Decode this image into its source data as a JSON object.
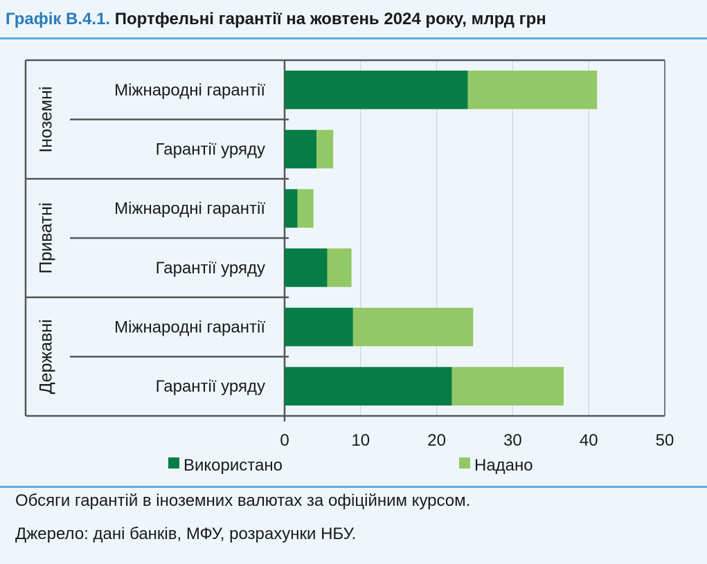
{
  "title": {
    "number": "Графік В.4.1.",
    "text": "Портфельні гарантії на жовтень 2024 року, млрд грн",
    "number_color": "#2b7bbd"
  },
  "note": "Обсяги гарантій в іноземних валютах за офіційним курсом.",
  "source": "Джерело: дані банків, МФУ, розрахунки НБУ.",
  "chart_data": {
    "type": "bar",
    "orientation": "horizontal",
    "stacked": true,
    "groups": [
      {
        "name": "Іноземні",
        "categories": [
          "Міжнародні гарантії",
          "Гарантії уряду"
        ]
      },
      {
        "name": "Приватні",
        "categories": [
          "Міжнародні гарантії",
          "Гарантії уряду"
        ]
      },
      {
        "name": "Державні",
        "categories": [
          "Міжнародні гарантії",
          "Гарантії уряду"
        ]
      }
    ],
    "series": [
      {
        "name": "Використано",
        "color": "#067d45",
        "values": [
          24.1,
          4.2,
          1.7,
          5.6,
          9.0,
          22.0
        ]
      },
      {
        "name": "Надано",
        "color": "#93c866",
        "values": [
          17.0,
          2.2,
          2.1,
          3.2,
          15.8,
          14.7
        ]
      }
    ],
    "xlim": [
      0,
      50
    ],
    "xticks": [
      "0",
      "10",
      "20",
      "30",
      "40",
      "50"
    ],
    "grid": true,
    "legend": "bottom"
  }
}
